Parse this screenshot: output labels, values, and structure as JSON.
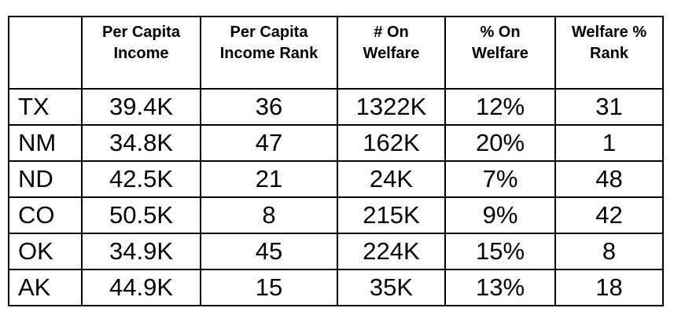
{
  "chart_data": {
    "type": "table",
    "columns": [
      "",
      "Per Capita Income",
      "Per Capita Income Rank",
      "# On Welfare",
      "% On Welfare",
      "Welfare % Rank"
    ],
    "rows": [
      [
        "TX",
        "39.4K",
        "36",
        "1322K",
        "12%",
        "31"
      ],
      [
        "NM",
        "34.8K",
        "47",
        "162K",
        "20%",
        "1"
      ],
      [
        "ND",
        "42.5K",
        "21",
        "24K",
        "7%",
        "48"
      ],
      [
        "CO",
        "50.5K",
        "8",
        "215K",
        "9%",
        "42"
      ],
      [
        "OK",
        "34.9K",
        "45",
        "224K",
        "15%",
        "8"
      ],
      [
        "AK",
        "44.9K",
        "15",
        "35K",
        "13%",
        "18"
      ]
    ]
  },
  "display": {
    "header_labels": [
      "",
      "Per Capita\nIncome",
      "Per Capita\nIncome Rank",
      "# On\nWelfare",
      "% On\nWelfare",
      "Welfare %\nRank"
    ]
  },
  "colors": {
    "border": "#000000",
    "text": "#000000",
    "background": "#ffffff"
  }
}
